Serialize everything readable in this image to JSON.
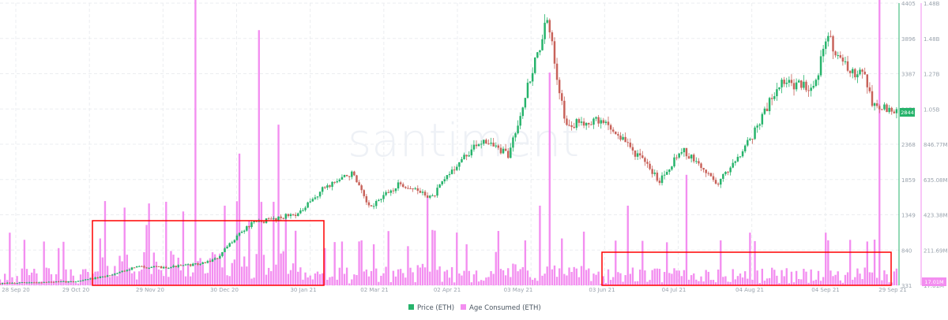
{
  "watermark": "santiment",
  "colors": {
    "up": "#26b36b",
    "down": "#c8625a",
    "bar": "#f38ef0",
    "grid": "#ebedf0",
    "price_axis": "#26b36b",
    "age_axis": "#f38ef0",
    "highlight": "#ff0000"
  },
  "chart_data": {
    "type": "line",
    "x_ticks": [
      "28 Sep 20",
      "29 Oct 20",
      "29 Nov 20",
      "30 Dec 20",
      "30 Jan 21",
      "02 Mar 21",
      "02 Apr 21",
      "03 May 21",
      "03 Jun 21",
      "04 Jul 21",
      "04 Aug 21",
      "04 Sep 21",
      "29 Sep 21"
    ],
    "y_left_ticks": [
      "4405",
      "3896",
      "3387",
      "2878",
      "2368",
      "1859",
      "1349",
      "840",
      "331"
    ],
    "y_right_ticks": [
      "1.48B",
      "1.48B",
      "1.27B",
      "1.05B",
      "846.77M",
      "635.08M",
      "423.38M",
      "211.69M",
      "17.01M"
    ],
    "price_ylim": [
      331,
      4405
    ],
    "age_ylim": [
      17010000,
      1480000000
    ],
    "current_price": "2844",
    "current_age": "17.01M",
    "legend": [
      {
        "label": "Price (ETH)",
        "color": "#26b36b"
      },
      {
        "label": "Age Consumed (ETH)",
        "color": "#f38ef0"
      }
    ],
    "series": [
      {
        "name": "Price (ETH)",
        "kind": "candlestick",
        "anchors": [
          [
            "2020-09-28",
            355
          ],
          [
            "2020-10-15",
            375
          ],
          [
            "2020-10-29",
            385
          ],
          [
            "2020-11-10",
            450
          ],
          [
            "2020-11-24",
            600
          ],
          [
            "2020-12-05",
            590
          ],
          [
            "2020-12-20",
            640
          ],
          [
            "2020-12-27",
            720
          ],
          [
            "2021-01-04",
            1050
          ],
          [
            "2021-01-10",
            1220
          ],
          [
            "2021-01-20",
            1300
          ],
          [
            "2021-01-30",
            1380
          ],
          [
            "2021-02-09",
            1750
          ],
          [
            "2021-02-20",
            1950
          ],
          [
            "2021-02-27",
            1450
          ],
          [
            "2021-03-12",
            1800
          ],
          [
            "2021-03-25",
            1600
          ],
          [
            "2021-04-02",
            2000
          ],
          [
            "2021-04-15",
            2450
          ],
          [
            "2021-04-25",
            2200
          ],
          [
            "2021-05-03",
            3200
          ],
          [
            "2021-05-11",
            4150
          ],
          [
            "2021-05-19",
            2600
          ],
          [
            "2021-05-25",
            2700
          ],
          [
            "2021-06-03",
            2700
          ],
          [
            "2021-06-12",
            2400
          ],
          [
            "2021-06-26",
            1850
          ],
          [
            "2021-07-05",
            2300
          ],
          [
            "2021-07-20",
            1800
          ],
          [
            "2021-08-03",
            2500
          ],
          [
            "2021-08-14",
            3250
          ],
          [
            "2021-08-28",
            3200
          ],
          [
            "2021-09-03",
            3930
          ],
          [
            "2021-09-12",
            3350
          ],
          [
            "2021-09-17",
            3500
          ],
          [
            "2021-09-21",
            2950
          ],
          [
            "2021-09-29",
            2844
          ]
        ]
      },
      {
        "name": "Age Consumed (ETH)",
        "kind": "bar",
        "baseline": 70000000,
        "spikes": [
          [
            "2020-10-02",
            290000000
          ],
          [
            "2020-10-22",
            210000000
          ],
          [
            "2020-11-08",
            260000000
          ],
          [
            "2020-11-18",
            420000000
          ],
          [
            "2020-11-27",
            330000000
          ],
          [
            "2020-12-12",
            400000000
          ],
          [
            "2020-12-17",
            1860000000
          ],
          [
            "2020-12-29",
            430000000
          ],
          [
            "2021-01-04",
            700000000
          ],
          [
            "2021-01-08",
            350000000
          ],
          [
            "2021-01-12",
            1340000000
          ],
          [
            "2021-01-18",
            450000000
          ],
          [
            "2021-01-20",
            850000000
          ],
          [
            "2021-01-23",
            380000000
          ],
          [
            "2021-01-27",
            300000000
          ],
          [
            "2021-02-08",
            210000000
          ],
          [
            "2021-02-28",
            230000000
          ],
          [
            "2021-03-14",
            220000000
          ],
          [
            "2021-03-22",
            480000000
          ],
          [
            "2021-04-07",
            230000000
          ],
          [
            "2021-04-19",
            190000000
          ],
          [
            "2021-05-01",
            250000000
          ],
          [
            "2021-05-07",
            430000000
          ],
          [
            "2021-05-11",
            1120000000
          ],
          [
            "2021-05-16",
            260000000
          ],
          [
            "2021-06-12",
            430000000
          ],
          [
            "2021-07-06",
            590000000
          ],
          [
            "2021-08-01",
            290000000
          ],
          [
            "2021-09-01",
            290000000
          ],
          [
            "2021-09-23",
            1600000000
          ]
        ]
      }
    ]
  },
  "x_range": [
    "2020-09-28",
    "2021-10-01"
  ]
}
